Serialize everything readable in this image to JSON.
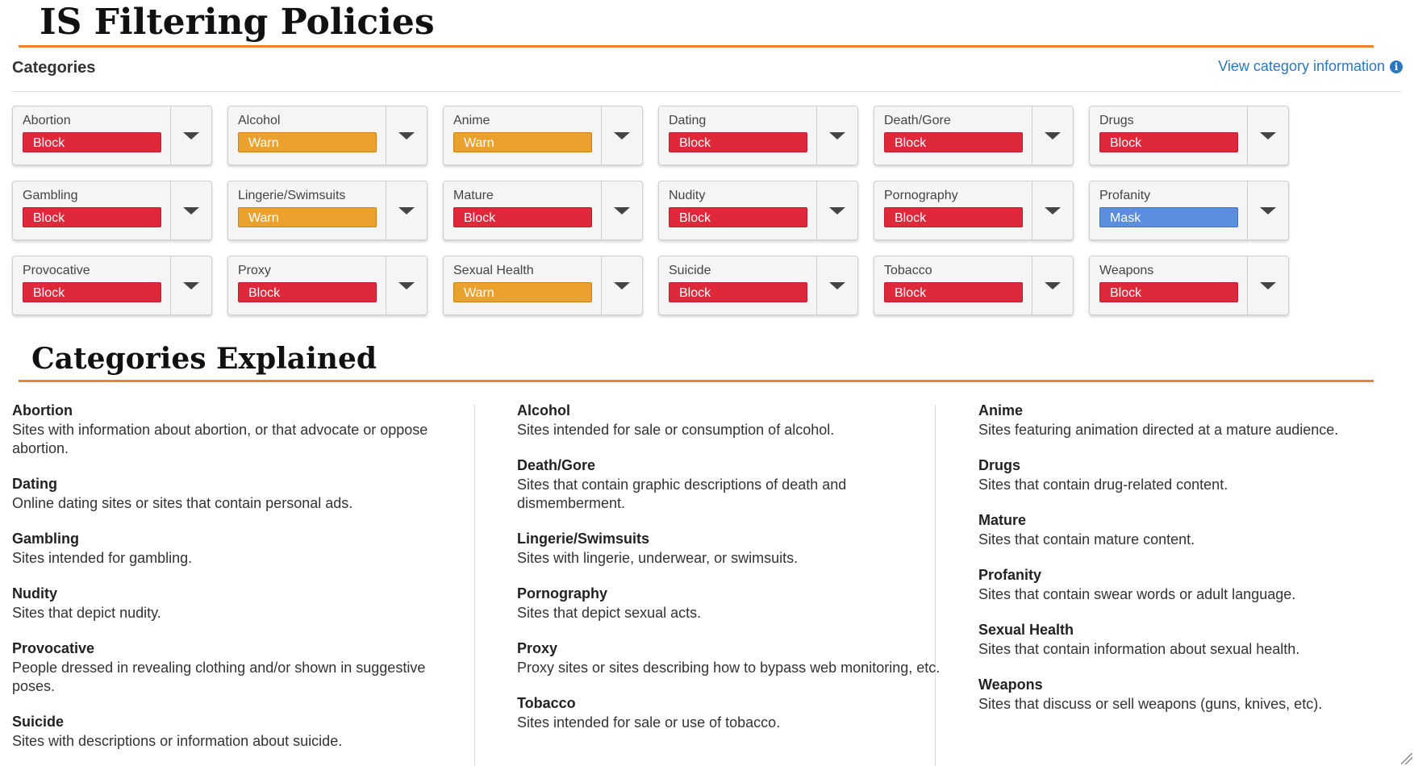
{
  "page": {
    "title": "IS Filtering Policies",
    "categories_heading": "Categories",
    "view_info_label": "View category information",
    "explained_title": "Categories Explained"
  },
  "colors": {
    "accent_rule": "#f0812f",
    "block": "#e0283b",
    "warn": "#eba12e",
    "mask": "#5b8ede",
    "link": "#2a77c1"
  },
  "categories": [
    {
      "name": "Abortion",
      "action": "Block",
      "type": "block"
    },
    {
      "name": "Alcohol",
      "action": "Warn",
      "type": "warn"
    },
    {
      "name": "Anime",
      "action": "Warn",
      "type": "warn"
    },
    {
      "name": "Dating",
      "action": "Block",
      "type": "block"
    },
    {
      "name": "Death/Gore",
      "action": "Block",
      "type": "block"
    },
    {
      "name": "Drugs",
      "action": "Block",
      "type": "block"
    },
    {
      "name": "Gambling",
      "action": "Block",
      "type": "block"
    },
    {
      "name": "Lingerie/Swimsuits",
      "action": "Warn",
      "type": "warn"
    },
    {
      "name": "Mature",
      "action": "Block",
      "type": "block"
    },
    {
      "name": "Nudity",
      "action": "Block",
      "type": "block"
    },
    {
      "name": "Pornography",
      "action": "Block",
      "type": "block"
    },
    {
      "name": "Profanity",
      "action": "Mask",
      "type": "mask"
    },
    {
      "name": "Provocative",
      "action": "Block",
      "type": "block"
    },
    {
      "name": "Proxy",
      "action": "Block",
      "type": "block"
    },
    {
      "name": "Sexual Health",
      "action": "Warn",
      "type": "warn"
    },
    {
      "name": "Suicide",
      "action": "Block",
      "type": "block"
    },
    {
      "name": "Tobacco",
      "action": "Block",
      "type": "block"
    },
    {
      "name": "Weapons",
      "action": "Block",
      "type": "block"
    }
  ],
  "explained": [
    [
      {
        "name": "Abortion",
        "desc": "Sites with information about abortion, or that advocate or oppose abortion."
      },
      {
        "name": "Dating",
        "desc": "Online dating sites or sites that contain personal ads."
      },
      {
        "name": "Gambling",
        "desc": "Sites intended for gambling."
      },
      {
        "name": "Nudity",
        "desc": "Sites that depict nudity."
      },
      {
        "name": "Provocative",
        "desc": "People dressed in revealing clothing and/or shown in suggestive poses."
      },
      {
        "name": "Suicide",
        "desc": "Sites with descriptions or information about suicide."
      }
    ],
    [
      {
        "name": "Alcohol",
        "desc": "Sites intended for sale or consumption of alcohol."
      },
      {
        "name": "Death/Gore",
        "desc": "Sites that contain graphic descriptions of death and dismemberment."
      },
      {
        "name": "Lingerie/Swimsuits",
        "desc": "Sites with lingerie, underwear, or swimsuits."
      },
      {
        "name": "Pornography",
        "desc": "Sites that depict sexual acts."
      },
      {
        "name": "Proxy",
        "desc": "Proxy sites or sites describing how to bypass web monitoring, etc."
      },
      {
        "name": "Tobacco",
        "desc": "Sites intended for sale or use of tobacco."
      }
    ],
    [
      {
        "name": "Anime",
        "desc": "Sites featuring animation directed at a mature audience."
      },
      {
        "name": "Drugs",
        "desc": "Sites that contain drug-related content."
      },
      {
        "name": "Mature",
        "desc": "Sites that contain mature content."
      },
      {
        "name": "Profanity",
        "desc": "Sites that contain swear words or adult language."
      },
      {
        "name": "Sexual Health",
        "desc": "Sites that contain information about sexual health."
      },
      {
        "name": "Weapons",
        "desc": "Sites that discuss or sell weapons (guns, knives, etc)."
      }
    ]
  ]
}
